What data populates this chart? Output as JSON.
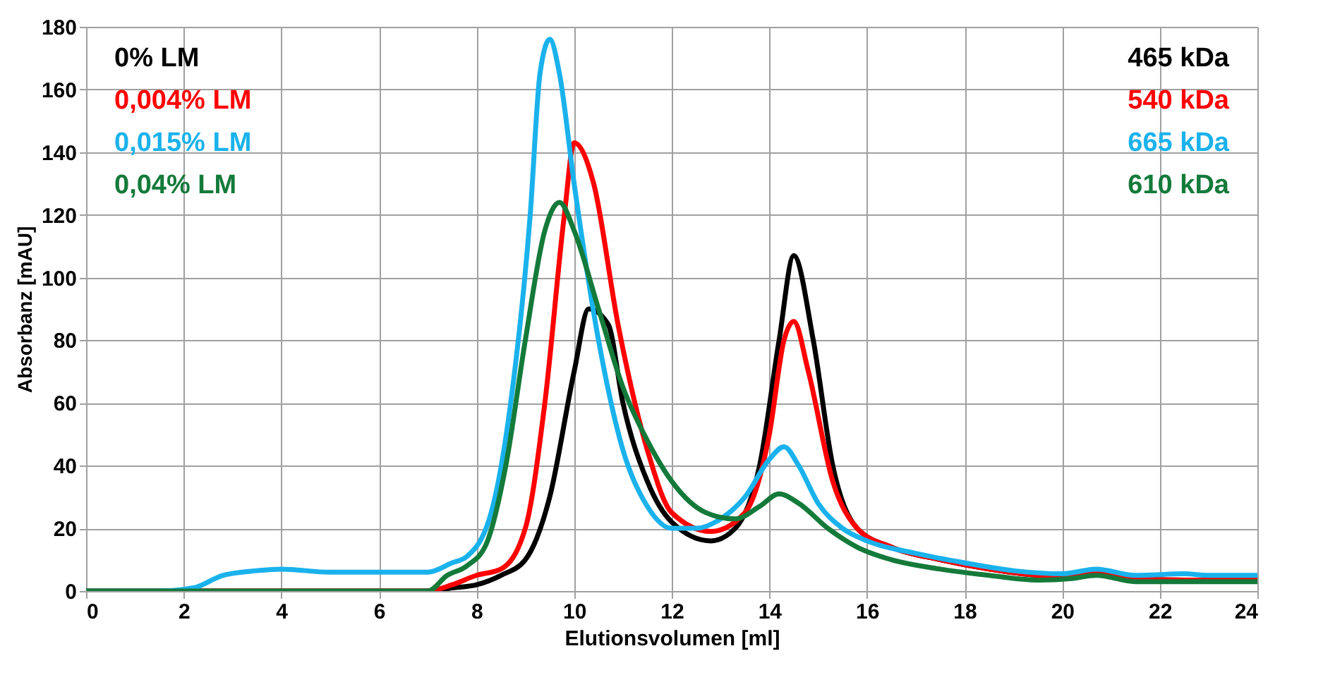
{
  "chart_data": {
    "type": "line",
    "xlabel": "Elutionsvolumen [ml]",
    "ylabel": "Absorbanz  [mAU]",
    "xlim": [
      0,
      24
    ],
    "xticks": [
      0,
      2,
      4,
      6,
      8,
      10,
      12,
      14,
      16,
      18,
      20,
      22,
      24
    ],
    "ylim": [
      0,
      180
    ],
    "yticks": [
      0,
      20,
      40,
      60,
      80,
      100,
      120,
      140,
      160,
      180
    ],
    "grid": true,
    "legend": "top left",
    "marker": "none",
    "line_style": "solid",
    "annotations": [
      "465 kDa",
      "540 kDa",
      "665 kDa",
      "610 kDa"
    ],
    "series": [
      {
        "name": "0% LM",
        "color": "#000000",
        "x": [
          0,
          7,
          7.5,
          8,
          8.5,
          9,
          9.5,
          10,
          10.3,
          10.7,
          11,
          11.5,
          12,
          12.8,
          13.3,
          13.8,
          14.2,
          14.5,
          14.9,
          15.3,
          15.8,
          16.5,
          17.5,
          18.5,
          19.5,
          20.2,
          20.7,
          21.5,
          22.5,
          24
        ],
        "values": [
          0,
          0,
          1,
          2,
          5,
          10,
          30,
          70,
          90,
          85,
          60,
          35,
          22,
          16,
          20,
          40,
          80,
          107,
          80,
          40,
          20,
          14,
          10,
          7,
          5,
          4.5,
          6,
          4,
          3.5,
          3.5
        ]
      },
      {
        "name": "0,004% LM",
        "color": "#ff0000",
        "x": [
          0,
          7,
          7.5,
          8,
          8.5,
          9,
          9.4,
          9.8,
          10,
          10.4,
          10.9,
          11.5,
          12,
          12.8,
          13.5,
          14,
          14.3,
          14.5,
          14.8,
          15.3,
          15.8,
          16.5,
          17.5,
          18.5,
          19.5,
          20.2,
          20.7,
          21.5,
          22.5,
          24
        ],
        "values": [
          0,
          0,
          2,
          5,
          7,
          20,
          60,
          120,
          143,
          130,
          85,
          45,
          25,
          19,
          25,
          50,
          80,
          86,
          70,
          35,
          20,
          14,
          10,
          7,
          5,
          4.5,
          6,
          4,
          3.5,
          3.5
        ]
      },
      {
        "name": "0,015% LM",
        "color": "#1ab2ec",
        "x": [
          0,
          1.5,
          2.2,
          2.8,
          3.5,
          4,
          5,
          6,
          7,
          7.5,
          7.8,
          8.3,
          8.7,
          9.1,
          9.3,
          9.5,
          9.7,
          10,
          10.5,
          11,
          11.5,
          12,
          12.5,
          13,
          13.5,
          14,
          14.3,
          14.6,
          15,
          15.5,
          16,
          17,
          18,
          19,
          20,
          20.7,
          21.5,
          22.5,
          23,
          24
        ],
        "values": [
          0,
          0,
          1,
          5,
          6.5,
          7,
          6,
          6,
          6,
          9,
          11,
          25,
          60,
          120,
          165,
          176,
          165,
          130,
          80,
          45,
          27,
          20,
          20,
          23,
          30,
          42,
          46,
          40,
          28,
          20,
          16,
          12,
          9,
          6.5,
          5.5,
          7,
          5,
          5.5,
          5,
          5
        ]
      },
      {
        "name": "0,04% LM",
        "color": "#147a3a",
        "x": [
          0,
          7,
          7.4,
          7.8,
          8.2,
          8.6,
          9,
          9.4,
          9.7,
          10,
          10.5,
          11,
          11.5,
          12,
          12.7,
          13.3,
          13.8,
          14.2,
          14.6,
          15.2,
          15.8,
          16.5,
          17.5,
          18.5,
          19.5,
          20.2,
          20.7,
          21.5,
          22.5,
          24
        ],
        "values": [
          0,
          0,
          5,
          8,
          15,
          40,
          80,
          115,
          124,
          115,
          90,
          65,
          48,
          35,
          25,
          23,
          27,
          31,
          28,
          20,
          14,
          10,
          7,
          5,
          3.5,
          4,
          5,
          3,
          3,
          3
        ]
      }
    ]
  }
}
